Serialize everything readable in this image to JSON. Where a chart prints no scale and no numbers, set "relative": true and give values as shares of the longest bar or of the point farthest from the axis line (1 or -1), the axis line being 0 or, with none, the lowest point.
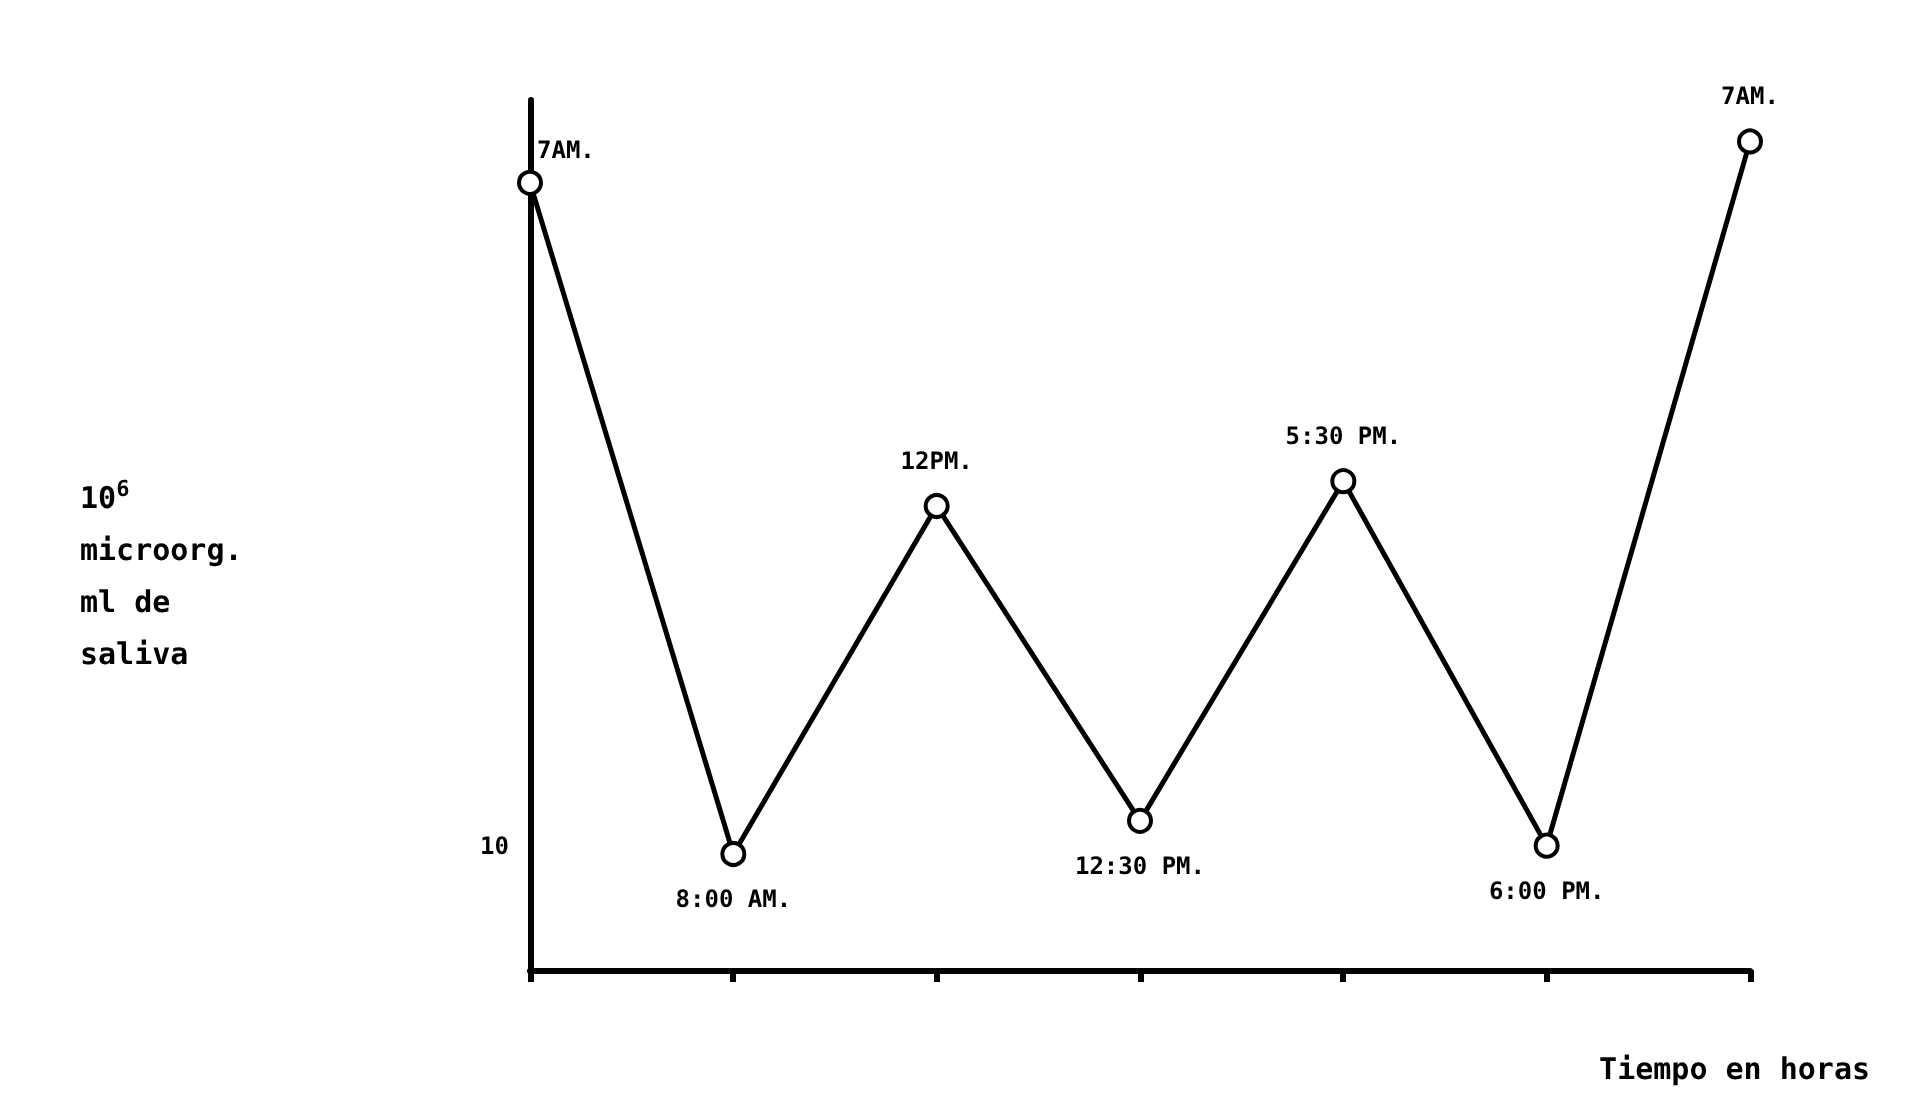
{
  "chart_data": {
    "type": "line",
    "relative": true,
    "xlabel": "Tiempo en horas",
    "ylabel": "10$^{6}$ microorg. ml de saliva",
    "categories": [
      null,
      null,
      null,
      null,
      null,
      null,
      null
    ],
    "series": [
      {
        "color": "#000000",
        "values": [
          0.95,
          0.14,
          0.56,
          0.18,
          0.59,
          0.15,
          1
        ]
      }
    ],
    "marker": "circle",
    "line_style": "solid",
    "annotations": [
      "7AM.",
      "8:00 AM.",
      "12PM.",
      "12:30 PM.",
      "5:30 PM.",
      "6:00 PM.",
      "7AM.",
      "10"
    ]
  }
}
